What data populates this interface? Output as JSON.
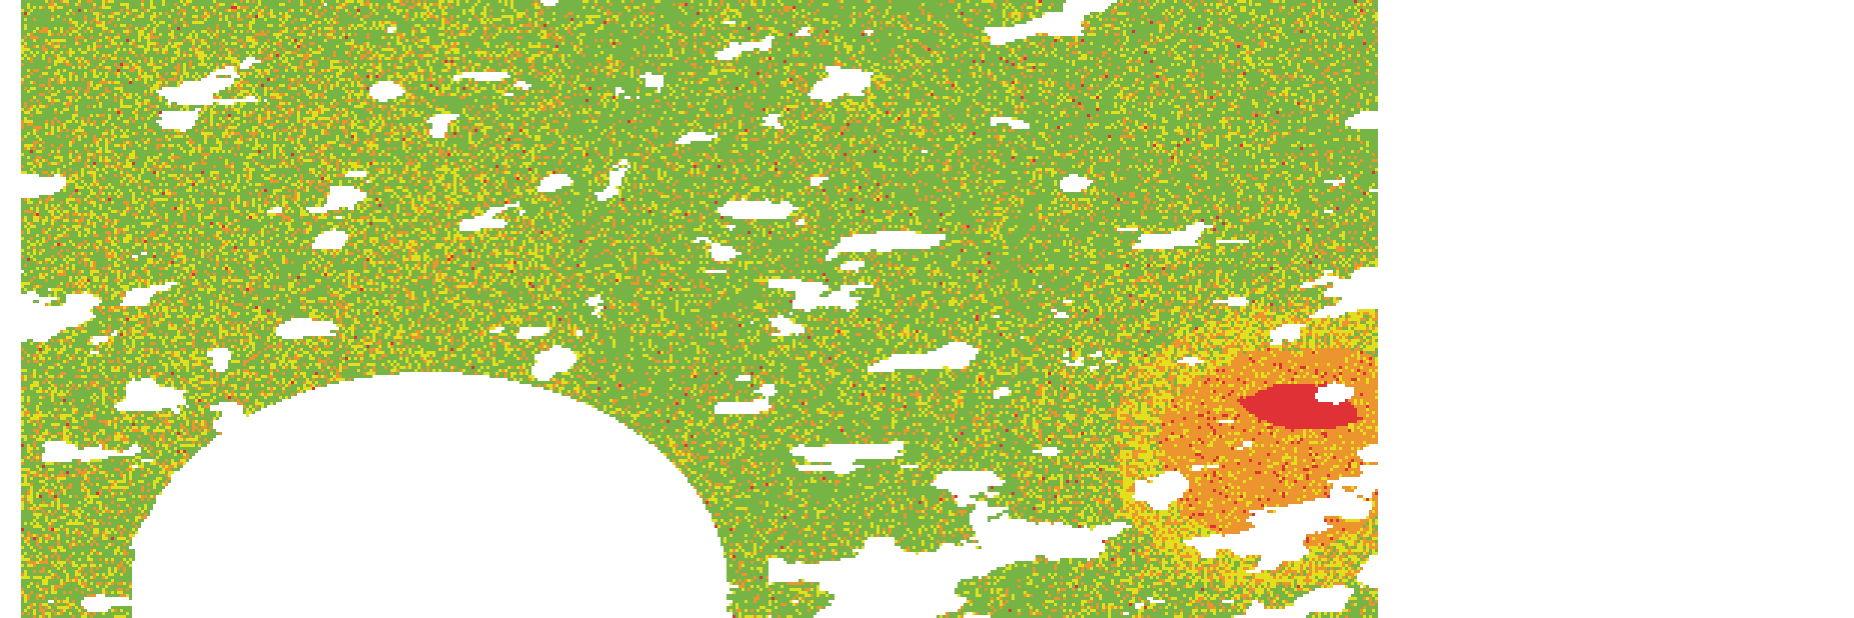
{
  "map": {
    "type": "classified raster",
    "background_color": "#ffffff",
    "no_data_color": "#ffffff",
    "class_colors": [
      "#76b445",
      "#e2e01c",
      "#ec952f",
      "#e03236"
    ]
  }
}
